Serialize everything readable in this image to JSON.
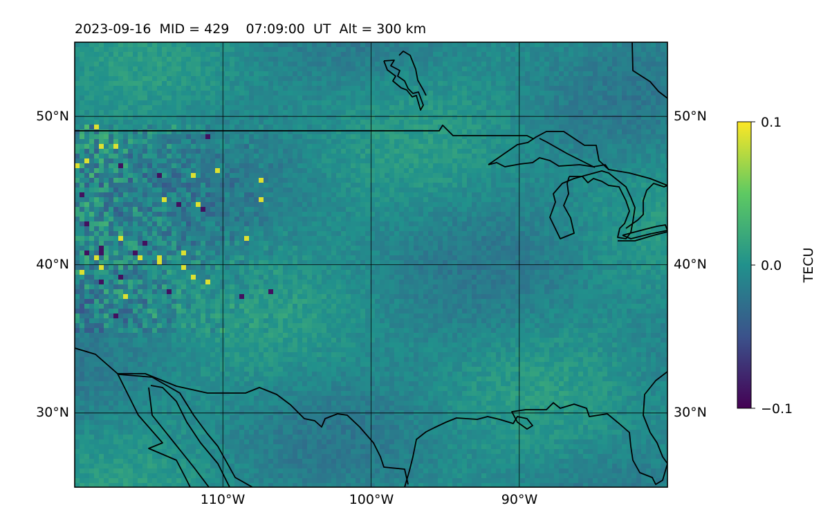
{
  "title": "2023-09-16  MID = 429    07:09:00  UT  Alt = 300 km",
  "map": {
    "lon_range": [
      -120,
      -80
    ],
    "lat_range": [
      25,
      55
    ],
    "lon_ticks": [
      {
        "lon": -110,
        "label": "110°W"
      },
      {
        "lon": -100,
        "label": "100°W"
      },
      {
        "lon": -90,
        "label": "90°W"
      }
    ],
    "lat_ticks": [
      {
        "lat": 50,
        "label": "50°N"
      },
      {
        "lat": 40,
        "label": "40°N"
      },
      {
        "lat": 30,
        "label": "30°N"
      }
    ],
    "gridlines": true,
    "coastlines": true,
    "borders": true
  },
  "colorbar": {
    "label": "TECU",
    "colormap": "viridis",
    "vmin": -0.1,
    "vmax": 0.1,
    "ticks": [
      {
        "value": 0.1,
        "label": "0.1"
      },
      {
        "value": 0.0,
        "label": "0.0"
      },
      {
        "value": -0.1,
        "label": "−0.1"
      }
    ]
  },
  "colors": {
    "viridis_stops": [
      "#440154",
      "#3b528b",
      "#21918c",
      "#5ec962",
      "#fde725"
    ],
    "grid": "#000000",
    "coast": "#000000"
  }
}
